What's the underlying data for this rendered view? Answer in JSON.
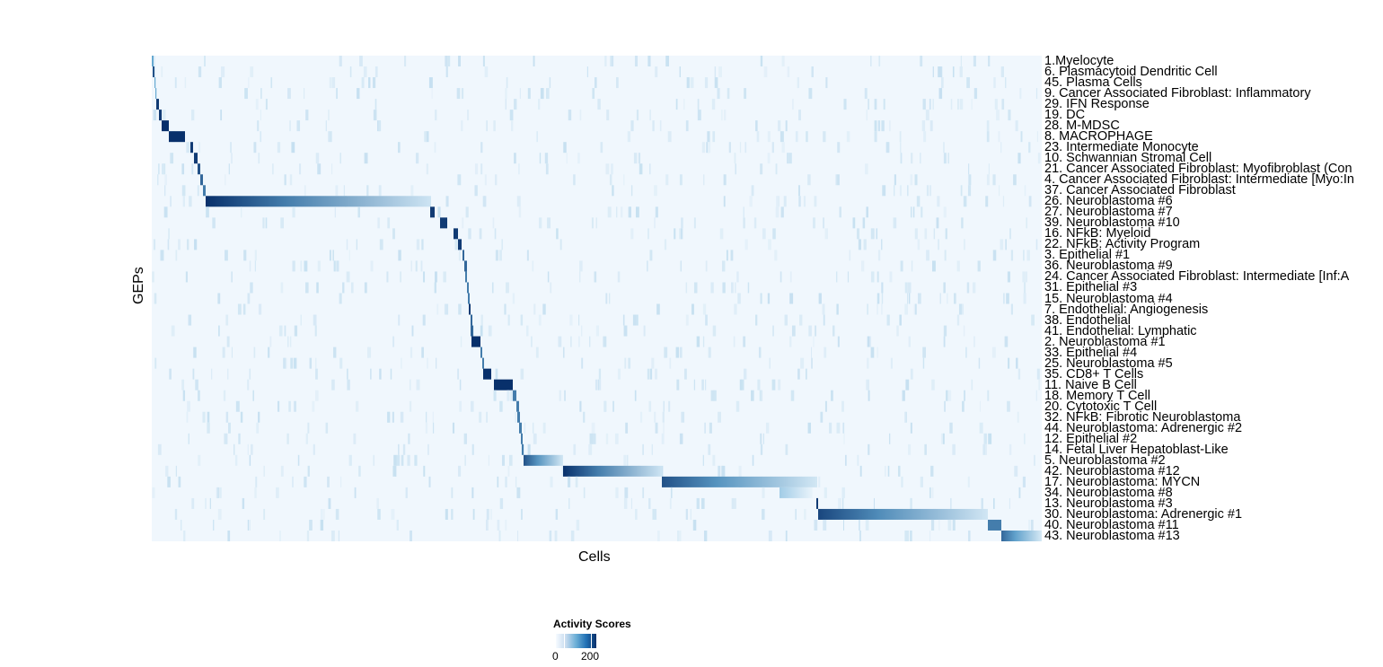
{
  "chart_data": {
    "type": "heatmap",
    "xlabel": "Cells",
    "ylabel": "GEPs",
    "color_scale": {
      "title": "Activity Scores",
      "low_color": "#f7fbff",
      "high_color": "#08306b",
      "ticks": [
        0,
        200
      ],
      "range": [
        0,
        230
      ]
    },
    "cell_count": 991,
    "rows": [
      {
        "label": "1.Myelocyte",
        "start": 0,
        "end": 2,
        "peak": 120,
        "fade": false
      },
      {
        "label": "6. Plasmacytoid Dendritic Cell",
        "start": 1,
        "end": 3,
        "peak": 200,
        "fade": false
      },
      {
        "label": "45. Plasma Cells",
        "start": 3,
        "end": 4,
        "peak": 120,
        "fade": false
      },
      {
        "label": "9. Cancer Associated Fibroblast: Inflammatory",
        "start": 4,
        "end": 5,
        "peak": 120,
        "fade": false
      },
      {
        "label": "29. IFN Response",
        "start": 5,
        "end": 8,
        "peak": 220,
        "fade": false
      },
      {
        "label": "19. DC",
        "start": 8,
        "end": 11,
        "peak": 220,
        "fade": false
      },
      {
        "label": "28. M-MDSC",
        "start": 11,
        "end": 19,
        "peak": 230,
        "fade": false
      },
      {
        "label": "8. MACROPHAGE",
        "start": 19,
        "end": 37,
        "peak": 230,
        "fade": false
      },
      {
        "label": "23. Intermediate Monocyte",
        "start": 43,
        "end": 46,
        "peak": 220,
        "fade": false
      },
      {
        "label": "10. Schwannian Stromal Cell",
        "start": 47,
        "end": 51,
        "peak": 220,
        "fade": false
      },
      {
        "label": "21. Cancer Associated Fibroblast: Myofibroblast (Con",
        "start": 51,
        "end": 54,
        "peak": 200,
        "fade": false
      },
      {
        "label": "4. Cancer Associated Fibroblast: Intermediate [Myo:In",
        "start": 54,
        "end": 57,
        "peak": 180,
        "fade": false
      },
      {
        "label": "37. Cancer Associated Fibroblast",
        "start": 57,
        "end": 60,
        "peak": 160,
        "fade": false
      },
      {
        "label": "26. Neuroblastoma #6",
        "start": 60,
        "end": 311,
        "peak": 230,
        "fade": true
      },
      {
        "label": "27. Neuroblastoma #7",
        "start": 310,
        "end": 315,
        "peak": 220,
        "fade": false
      },
      {
        "label": "39. Neuroblastoma #10",
        "start": 321,
        "end": 329,
        "peak": 220,
        "fade": false
      },
      {
        "label": "16. NFkB: Myeloid",
        "start": 336,
        "end": 341,
        "peak": 220,
        "fade": false
      },
      {
        "label": "22. NFkB: Activity Program",
        "start": 341,
        "end": 345,
        "peak": 220,
        "fade": false
      },
      {
        "label": "3. Epithelial #1",
        "start": 346,
        "end": 348,
        "peak": 180,
        "fade": false
      },
      {
        "label": "36. Neuroblastoma #9",
        "start": 348,
        "end": 351,
        "peak": 180,
        "fade": false
      },
      {
        "label": "24. Cancer Associated Fibroblast: Intermediate [Inf:A",
        "start": 349,
        "end": 351,
        "peak": 160,
        "fade": false
      },
      {
        "label": "31. Epithelial #3",
        "start": 351,
        "end": 353,
        "peak": 160,
        "fade": false
      },
      {
        "label": "15. Neuroblastoma #4",
        "start": 352,
        "end": 354,
        "peak": 160,
        "fade": false
      },
      {
        "label": "7. Endothelial: Angiogenesis",
        "start": 353,
        "end": 355,
        "peak": 220,
        "fade": false
      },
      {
        "label": "38. Endothelial",
        "start": 355,
        "end": 357,
        "peak": 180,
        "fade": false
      },
      {
        "label": "41. Endothelial: Lymphatic",
        "start": 355,
        "end": 358,
        "peak": 180,
        "fade": false
      },
      {
        "label": "2. Neuroblastoma #1",
        "start": 356,
        "end": 366,
        "peak": 230,
        "fade": false
      },
      {
        "label": "33. Epithelial #4",
        "start": 366,
        "end": 368,
        "peak": 160,
        "fade": false
      },
      {
        "label": "25. Neuroblastoma #5",
        "start": 368,
        "end": 370,
        "peak": 160,
        "fade": false
      },
      {
        "label": "35. CD8+ T Cells",
        "start": 369,
        "end": 378,
        "peak": 230,
        "fade": false
      },
      {
        "label": "11. Naive B Cell",
        "start": 381,
        "end": 402,
        "peak": 230,
        "fade": false
      },
      {
        "label": "18. Memory T Cell",
        "start": 402,
        "end": 406,
        "peak": 160,
        "fade": false
      },
      {
        "label": "20. Cytotoxic T Cell",
        "start": 406,
        "end": 409,
        "peak": 160,
        "fade": false
      },
      {
        "label": "32. NFkB: Fibrotic Neuroblastoma",
        "start": 407,
        "end": 410,
        "peak": 160,
        "fade": false
      },
      {
        "label": "44. Neuroblastoma: Adrenergic #2",
        "start": 409,
        "end": 412,
        "peak": 160,
        "fade": false
      },
      {
        "label": "12. Epithelial #2",
        "start": 411,
        "end": 413,
        "peak": 160,
        "fade": false
      },
      {
        "label": "14. Fetal Liver Hepatoblast-Like",
        "start": 412,
        "end": 414,
        "peak": 160,
        "fade": false
      },
      {
        "label": "5. Neuroblastoma #2",
        "start": 414,
        "end": 458,
        "peak": 200,
        "fade": true
      },
      {
        "label": "42. Neuroblastoma #12",
        "start": 458,
        "end": 568,
        "peak": 230,
        "fade": true
      },
      {
        "label": "17. Neuroblastoma: MYCN",
        "start": 568,
        "end": 741,
        "peak": 200,
        "fade": true
      },
      {
        "label": "34. Neuroblastoma #8",
        "start": 699,
        "end": 736,
        "peak": 70,
        "fade": true
      },
      {
        "label": "13. Neuroblastoma #3",
        "start": 740,
        "end": 742,
        "peak": 220,
        "fade": false
      },
      {
        "label": "30. Neuroblastoma: Adrenergic #1",
        "start": 742,
        "end": 931,
        "peak": 210,
        "fade": true
      },
      {
        "label": "40. Neuroblastoma #11",
        "start": 931,
        "end": 946,
        "peak": 160,
        "fade": false
      },
      {
        "label": "43. Neuroblastoma #13",
        "start": 946,
        "end": 991,
        "peak": 180,
        "fade": true
      }
    ]
  }
}
